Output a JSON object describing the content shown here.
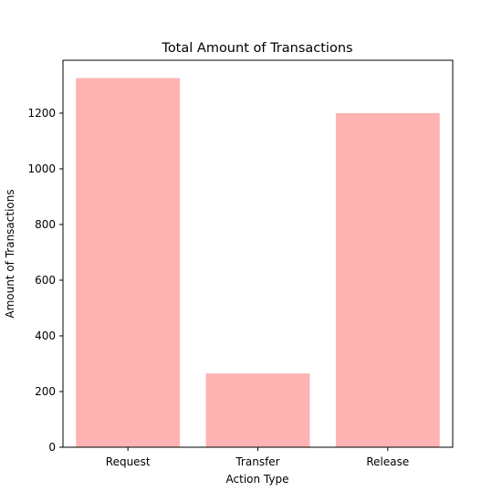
{
  "chart_data": {
    "type": "bar",
    "title": "Total Amount of Transactions",
    "xlabel": "Action Type",
    "ylabel": "Amount of Transactions",
    "categories": [
      "Request",
      "Transfer",
      "Release"
    ],
    "values": [
      1326,
      265,
      1200
    ],
    "ylim": [
      0,
      1390
    ],
    "yticks": [
      0,
      200,
      400,
      600,
      800,
      1000,
      1200
    ],
    "bar_color": "#ffb3b3",
    "grid": false,
    "legend": "none"
  }
}
